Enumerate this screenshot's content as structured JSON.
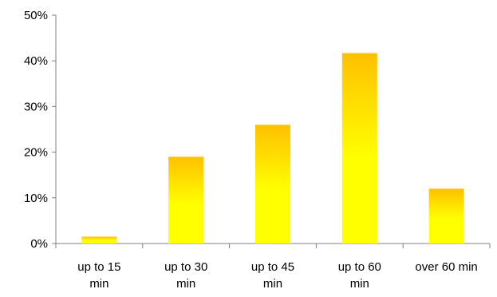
{
  "chart_data": {
    "type": "bar",
    "title": "",
    "xlabel": "",
    "ylabel": "",
    "categories": [
      [
        "up to 15",
        "min"
      ],
      [
        "up to 30",
        "min"
      ],
      [
        "up to 45",
        "min"
      ],
      [
        "up to 60",
        "min"
      ],
      [
        "over 60 min"
      ]
    ],
    "values": [
      1.5,
      19,
      26,
      41.7,
      12
    ],
    "y_ticks": [
      "0%",
      "10%",
      "20%",
      "30%",
      "40%",
      "50%"
    ],
    "ylim": [
      0,
      50
    ],
    "y_unit": "%",
    "grid": false,
    "legend": "none",
    "colors": {
      "bar_top": "#FFC000",
      "bar_bottom": "#FFFF00",
      "axis": "#808080"
    }
  }
}
